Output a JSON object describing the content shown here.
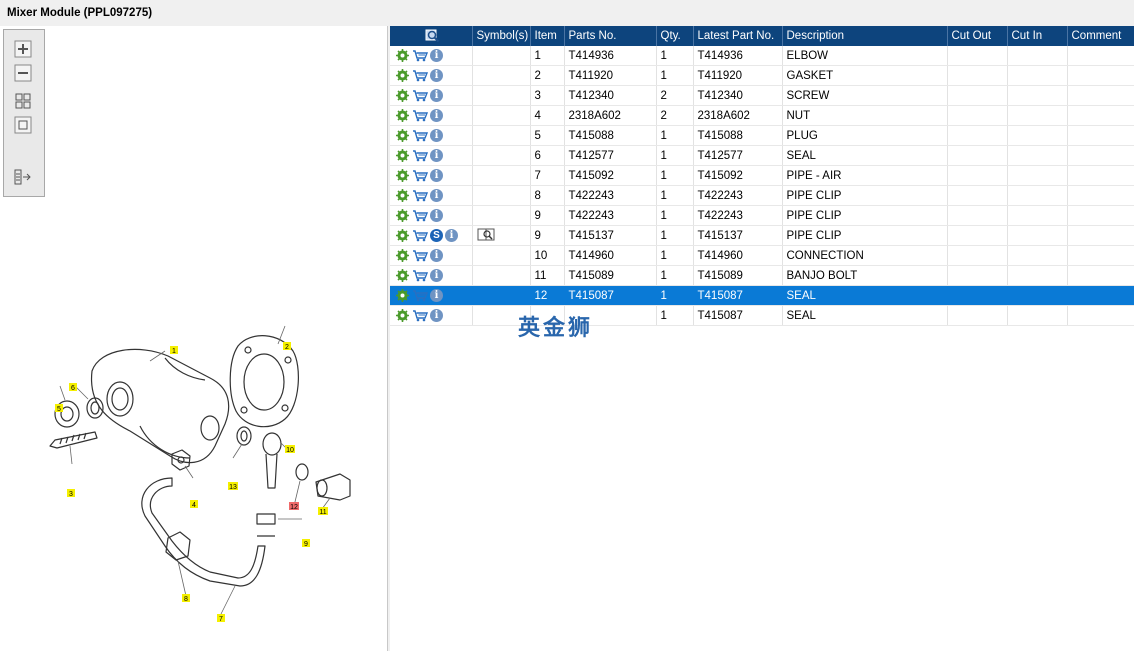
{
  "window": {
    "title": "Mixer Module (PPL097275)"
  },
  "toolbar": {
    "icons": [
      "zoom-in-icon",
      "zoom-out-icon",
      "fit-all-icon",
      "fit-window-icon",
      "list-arrow-icon"
    ]
  },
  "grid": {
    "headers": [
      "",
      "Symbol(s)",
      "Item",
      "Parts No.",
      "Qty.",
      "Latest Part No.",
      "Description",
      "Cut Out",
      "Cut In",
      "Comment"
    ],
    "rows": [
      {
        "item": "1",
        "part": "T414936",
        "qty": "1",
        "latest": "T414936",
        "desc": "ELBOW",
        "symbol": false,
        "s": false,
        "selected": false
      },
      {
        "item": "2",
        "part": "T411920",
        "qty": "1",
        "latest": "T411920",
        "desc": "GASKET",
        "symbol": false,
        "s": false,
        "selected": false
      },
      {
        "item": "3",
        "part": "T412340",
        "qty": "2",
        "latest": "T412340",
        "desc": "SCREW",
        "symbol": false,
        "s": false,
        "selected": false
      },
      {
        "item": "4",
        "part": "2318A602",
        "qty": "2",
        "latest": "2318A602",
        "desc": "NUT",
        "symbol": false,
        "s": false,
        "selected": false
      },
      {
        "item": "5",
        "part": "T415088",
        "qty": "1",
        "latest": "T415088",
        "desc": "PLUG",
        "symbol": false,
        "s": false,
        "selected": false
      },
      {
        "item": "6",
        "part": "T412577",
        "qty": "1",
        "latest": "T412577",
        "desc": "SEAL",
        "symbol": false,
        "s": false,
        "selected": false
      },
      {
        "item": "7",
        "part": "T415092",
        "qty": "1",
        "latest": "T415092",
        "desc": "PIPE - AIR",
        "symbol": false,
        "s": false,
        "selected": false
      },
      {
        "item": "8",
        "part": "T422243",
        "qty": "1",
        "latest": "T422243",
        "desc": "PIPE CLIP",
        "symbol": false,
        "s": false,
        "selected": false
      },
      {
        "item": "9",
        "part": "T422243",
        "qty": "1",
        "latest": "T422243",
        "desc": "PIPE CLIP",
        "symbol": false,
        "s": false,
        "selected": false
      },
      {
        "item": "9",
        "part": "T415137",
        "qty": "1",
        "latest": "T415137",
        "desc": "PIPE CLIP",
        "symbol": true,
        "s": true,
        "selected": false
      },
      {
        "item": "10",
        "part": "T414960",
        "qty": "1",
        "latest": "T414960",
        "desc": "CONNECTION",
        "symbol": false,
        "s": false,
        "selected": false
      },
      {
        "item": "11",
        "part": "T415089",
        "qty": "1",
        "latest": "T415089",
        "desc": "BANJO BOLT",
        "symbol": false,
        "s": false,
        "selected": false
      },
      {
        "item": "12",
        "part": "T415087",
        "qty": "1",
        "latest": "T415087",
        "desc": "SEAL",
        "symbol": false,
        "s": false,
        "selected": true
      },
      {
        "item": "",
        "part": "",
        "qty": "1",
        "latest": "T415087",
        "desc": "SEAL",
        "symbol": false,
        "s": false,
        "selected": false
      }
    ]
  },
  "diagram": {
    "callouts": [
      "1",
      "2",
      "3",
      "4",
      "5",
      "6",
      "7",
      "8",
      "9",
      "10",
      "11",
      "12",
      "13"
    ],
    "highlighted_callout": "12"
  },
  "watermark": {
    "text": "英金狮"
  },
  "colors": {
    "header": "#0d447d",
    "selection": "#0a7ad6",
    "callout": "#f5f000",
    "callout_hl": "#f06a6a"
  }
}
